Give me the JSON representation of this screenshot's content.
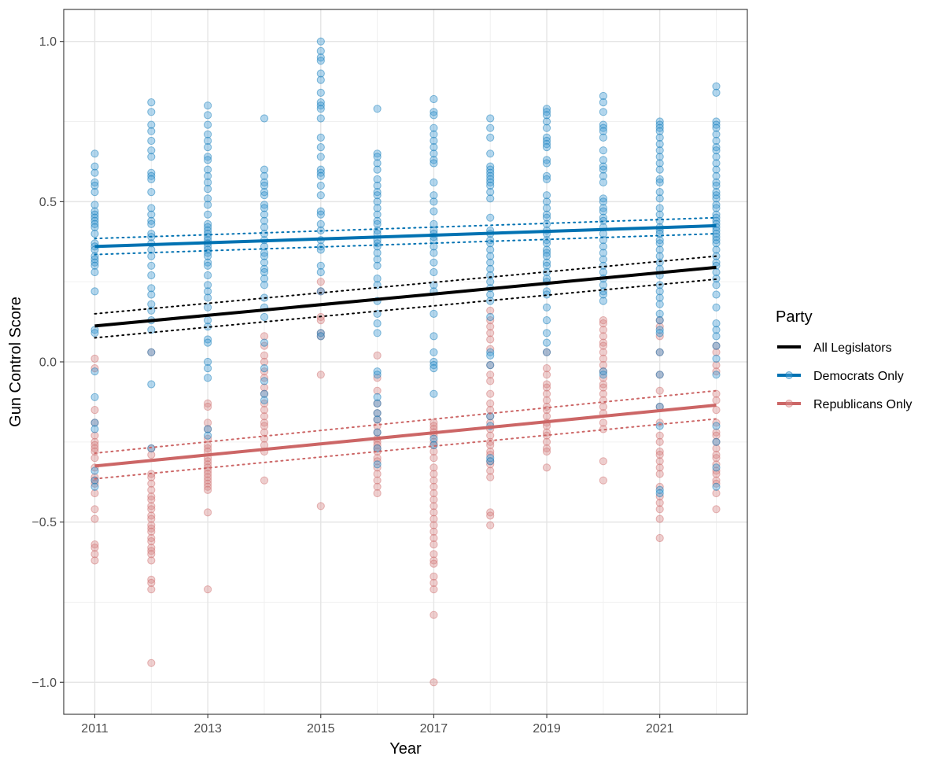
{
  "chart_data": {
    "type": "scatter",
    "xlabel": "Year",
    "ylabel": "Gun Control Score",
    "xlim": [
      2010.45,
      2022.55
    ],
    "ylim": [
      -1.1,
      1.1
    ],
    "x_ticks": [
      2011,
      2013,
      2015,
      2017,
      2019,
      2021
    ],
    "x_tick_labels": [
      "2011",
      "2013",
      "2015",
      "2017",
      "2019",
      "2021"
    ],
    "x_minor_ticks": [
      2012,
      2014,
      2016,
      2018,
      2020,
      2022
    ],
    "y_ticks": [
      1.0,
      0.5,
      0.0,
      -0.5,
      -1.0
    ],
    "y_tick_labels": [
      "1.0",
      "0.5",
      "0.0",
      "−0.5",
      "−1.0"
    ],
    "grid": true,
    "legend": {
      "title": "Party",
      "placement": "right",
      "entries": [
        {
          "label": "All Legislators",
          "color": "#000000",
          "marker": false
        },
        {
          "label": "Democrats Only",
          "color": "#0072B2",
          "marker": true
        },
        {
          "label": "Republicans Only",
          "color": "#CC6666",
          "marker": true
        }
      ]
    },
    "point_series": [
      {
        "party": "Democrats",
        "color": "#0072B2",
        "point_color": "#4A9FD6",
        "points": [
          {
            "x": 2011,
            "y": [
              0.65,
              0.61,
              0.59,
              0.56,
              0.55,
              0.53,
              0.49,
              0.47,
              0.46,
              0.45,
              0.44,
              0.43,
              0.42,
              0.4,
              0.37,
              0.36,
              0.35,
              0.33,
              0.32,
              0.31,
              0.3,
              0.28,
              0.22,
              0.1,
              0.09,
              -0.03,
              -0.11,
              -0.19,
              -0.21,
              -0.34,
              -0.37,
              -0.39
            ]
          },
          {
            "x": 2012,
            "y": [
              0.81,
              0.78,
              0.74,
              0.72,
              0.69,
              0.66,
              0.64,
              0.59,
              0.58,
              0.57,
              0.53,
              0.48,
              0.46,
              0.44,
              0.43,
              0.4,
              0.39,
              0.37,
              0.35,
              0.33,
              0.3,
              0.27,
              0.23,
              0.21,
              0.18,
              0.16,
              0.13,
              0.1,
              0.03,
              -0.07,
              -0.27
            ]
          },
          {
            "x": 2013,
            "y": [
              0.8,
              0.77,
              0.74,
              0.71,
              0.69,
              0.67,
              0.64,
              0.63,
              0.6,
              0.58,
              0.56,
              0.54,
              0.51,
              0.49,
              0.46,
              0.43,
              0.42,
              0.41,
              0.4,
              0.39,
              0.38,
              0.37,
              0.36,
              0.35,
              0.34,
              0.33,
              0.31,
              0.3,
              0.27,
              0.24,
              0.22,
              0.2,
              0.17,
              0.13,
              0.11,
              0.07,
              0.06,
              0.0,
              -0.02,
              -0.05,
              -0.21,
              -0.23
            ]
          },
          {
            "x": 2014,
            "y": [
              0.76,
              0.6,
              0.58,
              0.56,
              0.55,
              0.53,
              0.52,
              0.49,
              0.48,
              0.46,
              0.44,
              0.42,
              0.4,
              0.38,
              0.36,
              0.34,
              0.33,
              0.31,
              0.29,
              0.28,
              0.26,
              0.24,
              0.2,
              0.17,
              0.14,
              0.06,
              -0.02,
              -0.06,
              -0.1,
              -0.12
            ]
          },
          {
            "x": 2015,
            "y": [
              1.0,
              0.97,
              0.95,
              0.94,
              0.9,
              0.88,
              0.84,
              0.81,
              0.8,
              0.79,
              0.76,
              0.7,
              0.67,
              0.64,
              0.6,
              0.59,
              0.58,
              0.55,
              0.52,
              0.47,
              0.46,
              0.43,
              0.41,
              0.38,
              0.36,
              0.35,
              0.3,
              0.28,
              0.22,
              0.09,
              0.08
            ]
          },
          {
            "x": 2016,
            "y": [
              0.79,
              0.65,
              0.64,
              0.62,
              0.6,
              0.57,
              0.55,
              0.53,
              0.52,
              0.5,
              0.48,
              0.46,
              0.44,
              0.43,
              0.41,
              0.4,
              0.38,
              0.37,
              0.36,
              0.34,
              0.32,
              0.3,
              0.26,
              0.24,
              0.19,
              0.15,
              0.12,
              0.09,
              -0.03,
              -0.04,
              -0.11,
              -0.13,
              -0.16,
              -0.18,
              -0.22,
              -0.27,
              -0.32
            ]
          },
          {
            "x": 2017,
            "y": [
              0.82,
              0.78,
              0.77,
              0.73,
              0.71,
              0.69,
              0.67,
              0.65,
              0.63,
              0.62,
              0.56,
              0.52,
              0.5,
              0.47,
              0.43,
              0.41,
              0.4,
              0.39,
              0.38,
              0.36,
              0.34,
              0.31,
              0.28,
              0.24,
              0.22,
              0.15,
              0.08,
              0.03,
              0.0,
              -0.01,
              -0.02,
              -0.1,
              -0.24,
              -0.26
            ]
          },
          {
            "x": 2018,
            "y": [
              0.76,
              0.73,
              0.7,
              0.65,
              0.61,
              0.6,
              0.59,
              0.58,
              0.57,
              0.56,
              0.55,
              0.53,
              0.51,
              0.45,
              0.41,
              0.4,
              0.38,
              0.37,
              0.35,
              0.33,
              0.31,
              0.29,
              0.27,
              0.25,
              0.23,
              0.21,
              0.19,
              0.14,
              0.03,
              0.02,
              -0.01,
              -0.17,
              -0.2,
              -0.3,
              -0.31
            ]
          },
          {
            "x": 2019,
            "y": [
              0.79,
              0.78,
              0.77,
              0.75,
              0.73,
              0.7,
              0.69,
              0.68,
              0.67,
              0.63,
              0.62,
              0.58,
              0.57,
              0.52,
              0.5,
              0.48,
              0.46,
              0.45,
              0.43,
              0.41,
              0.4,
              0.38,
              0.37,
              0.35,
              0.34,
              0.33,
              0.31,
              0.3,
              0.28,
              0.26,
              0.25,
              0.22,
              0.21,
              0.17,
              0.13,
              0.09,
              0.06,
              0.03
            ]
          },
          {
            "x": 2020,
            "y": [
              0.83,
              0.81,
              0.78,
              0.74,
              0.73,
              0.72,
              0.7,
              0.66,
              0.63,
              0.61,
              0.6,
              0.58,
              0.56,
              0.51,
              0.5,
              0.48,
              0.47,
              0.45,
              0.44,
              0.42,
              0.4,
              0.38,
              0.36,
              0.34,
              0.32,
              0.3,
              0.28,
              0.26,
              0.24,
              0.22,
              0.21,
              0.19,
              -0.03,
              -0.04
            ]
          },
          {
            "x": 2021,
            "y": [
              0.75,
              0.74,
              0.73,
              0.72,
              0.7,
              0.68,
              0.66,
              0.64,
              0.62,
              0.6,
              0.57,
              0.56,
              0.53,
              0.51,
              0.48,
              0.46,
              0.44,
              0.42,
              0.41,
              0.4,
              0.38,
              0.37,
              0.35,
              0.33,
              0.31,
              0.29,
              0.27,
              0.24,
              0.22,
              0.2,
              0.18,
              0.15,
              0.13,
              0.1,
              0.09,
              0.03,
              -0.04,
              -0.14,
              -0.2,
              -0.4,
              -0.41
            ]
          },
          {
            "x": 2022,
            "y": [
              0.86,
              0.84,
              0.75,
              0.74,
              0.73,
              0.71,
              0.69,
              0.67,
              0.66,
              0.64,
              0.62,
              0.6,
              0.58,
              0.56,
              0.55,
              0.53,
              0.52,
              0.51,
              0.49,
              0.48,
              0.46,
              0.45,
              0.44,
              0.43,
              0.42,
              0.41,
              0.4,
              0.39,
              0.38,
              0.37,
              0.35,
              0.33,
              0.31,
              0.3,
              0.28,
              0.26,
              0.24,
              0.21,
              0.17,
              0.12,
              0.1,
              0.08,
              0.05,
              0.01,
              -0.04,
              -0.2,
              -0.25,
              -0.33,
              -0.39
            ]
          }
        ]
      },
      {
        "party": "Republicans",
        "color": "#CC6666",
        "point_color": "#D98C8C",
        "points": [
          {
            "x": 2011,
            "y": [
              0.01,
              -0.02,
              -0.15,
              -0.19,
              -0.23,
              -0.25,
              -0.26,
              -0.27,
              -0.28,
              -0.3,
              -0.33,
              -0.36,
              -0.37,
              -0.38,
              -0.41,
              -0.46,
              -0.49,
              -0.57,
              -0.58,
              -0.6,
              -0.62
            ]
          },
          {
            "x": 2012,
            "y": [
              0.03,
              -0.27,
              -0.29,
              -0.35,
              -0.36,
              -0.38,
              -0.4,
              -0.42,
              -0.43,
              -0.45,
              -0.46,
              -0.48,
              -0.49,
              -0.51,
              -0.52,
              -0.53,
              -0.55,
              -0.56,
              -0.58,
              -0.59,
              -0.6,
              -0.62,
              -0.68,
              -0.69,
              -0.71,
              -0.94
            ]
          },
          {
            "x": 2013,
            "y": [
              -0.13,
              -0.14,
              -0.19,
              -0.21,
              -0.24,
              -0.26,
              -0.27,
              -0.28,
              -0.3,
              -0.31,
              -0.32,
              -0.33,
              -0.34,
              -0.35,
              -0.36,
              -0.37,
              -0.38,
              -0.39,
              -0.4,
              -0.47,
              -0.71
            ]
          },
          {
            "x": 2014,
            "y": [
              0.08,
              0.05,
              0.02,
              0.0,
              -0.03,
              -0.05,
              -0.08,
              -0.1,
              -0.13,
              -0.15,
              -0.17,
              -0.19,
              -0.2,
              -0.22,
              -0.24,
              -0.26,
              -0.28,
              -0.37
            ]
          },
          {
            "x": 2015,
            "y": [
              0.25,
              0.22,
              0.14,
              0.13,
              0.09,
              0.08,
              -0.04,
              -0.45
            ]
          },
          {
            "x": 2016,
            "y": [
              0.02,
              -0.05,
              -0.09,
              -0.13,
              -0.16,
              -0.18,
              -0.2,
              -0.22,
              -0.24,
              -0.25,
              -0.26,
              -0.27,
              -0.28,
              -0.3,
              -0.31,
              -0.33,
              -0.35,
              -0.37,
              -0.39,
              -0.41
            ]
          },
          {
            "x": 2017,
            "y": [
              -0.19,
              -0.2,
              -0.21,
              -0.22,
              -0.23,
              -0.25,
              -0.26,
              -0.28,
              -0.3,
              -0.33,
              -0.35,
              -0.37,
              -0.39,
              -0.41,
              -0.43,
              -0.45,
              -0.47,
              -0.49,
              -0.51,
              -0.53,
              -0.55,
              -0.57,
              -0.6,
              -0.62,
              -0.63,
              -0.67,
              -0.69,
              -0.71,
              -0.79,
              -1.0
            ]
          },
          {
            "x": 2018,
            "y": [
              0.16,
              0.13,
              0.11,
              0.09,
              0.07,
              0.04,
              -0.01,
              -0.04,
              -0.06,
              -0.1,
              -0.13,
              -0.15,
              -0.17,
              -0.19,
              -0.21,
              -0.23,
              -0.25,
              -0.26,
              -0.28,
              -0.29,
              -0.31,
              -0.32,
              -0.34,
              -0.36,
              -0.47,
              -0.48,
              -0.51
            ]
          },
          {
            "x": 2019,
            "y": [
              0.03,
              -0.02,
              -0.04,
              -0.07,
              -0.08,
              -0.1,
              -0.12,
              -0.14,
              -0.15,
              -0.17,
              -0.19,
              -0.2,
              -0.22,
              -0.23,
              -0.25,
              -0.27,
              -0.28,
              -0.33
            ]
          },
          {
            "x": 2020,
            "y": [
              0.13,
              0.12,
              0.1,
              0.08,
              0.06,
              0.05,
              0.03,
              0.01,
              -0.01,
              -0.03,
              -0.05,
              -0.07,
              -0.08,
              -0.1,
              -0.12,
              -0.14,
              -0.16,
              -0.19,
              -0.21,
              -0.31,
              -0.37
            ]
          },
          {
            "x": 2021,
            "y": [
              0.13,
              0.11,
              0.08,
              0.03,
              -0.04,
              -0.09,
              -0.14,
              -0.19,
              -0.23,
              -0.25,
              -0.28,
              -0.29,
              -0.31,
              -0.33,
              -0.35,
              -0.39,
              -0.42,
              -0.44,
              -0.46,
              -0.49,
              -0.55
            ]
          },
          {
            "x": 2022,
            "y": [
              0.05,
              0.03,
              -0.01,
              -0.03,
              -0.1,
              -0.12,
              -0.15,
              -0.19,
              -0.22,
              -0.23,
              -0.25,
              -0.27,
              -0.29,
              -0.3,
              -0.32,
              -0.34,
              -0.35,
              -0.37,
              -0.38,
              -0.41,
              -0.46
            ]
          }
        ]
      }
    ],
    "trend_lines": [
      {
        "name": "All Legislators",
        "color": "#000000",
        "x": [
          2011,
          2022
        ],
        "y": [
          0.112,
          0.295
        ],
        "ci_lower": [
          0.075,
          0.258
        ],
        "ci_upper": [
          0.15,
          0.33
        ]
      },
      {
        "name": "Democrats Only",
        "color": "#0072B2",
        "x": [
          2011,
          2022
        ],
        "y": [
          0.36,
          0.425
        ],
        "ci_lower": [
          0.335,
          0.4
        ],
        "ci_upper": [
          0.385,
          0.45
        ]
      },
      {
        "name": "Republicans Only",
        "color": "#CC6666",
        "x": [
          2011,
          2022
        ],
        "y": [
          -0.325,
          -0.135
        ],
        "ci_lower": [
          -0.365,
          -0.178
        ],
        "ci_upper": [
          -0.285,
          -0.09
        ]
      }
    ]
  }
}
